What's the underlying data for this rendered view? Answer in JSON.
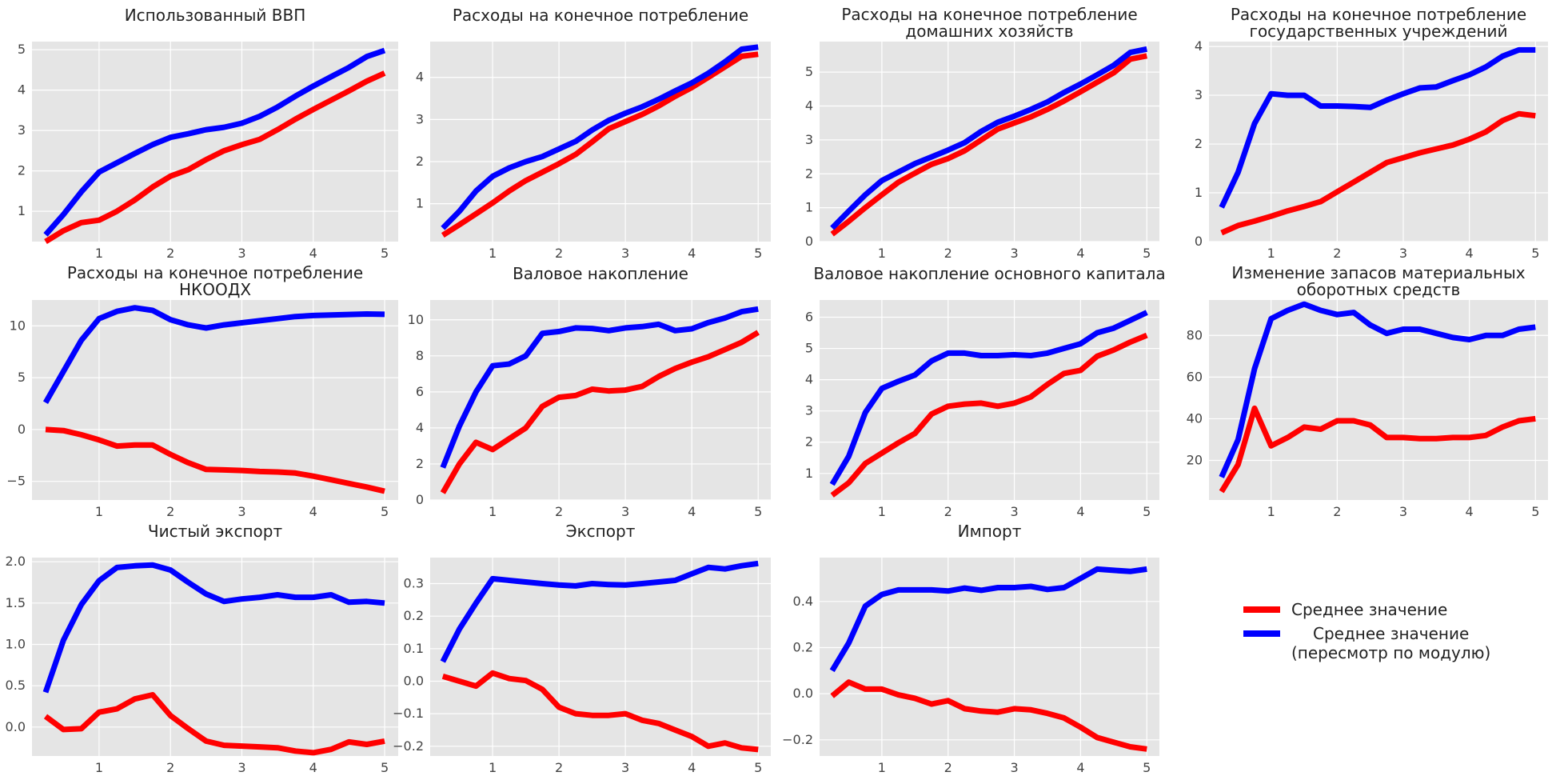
{
  "colors": {
    "red": "#ff0000",
    "blue": "#0000ff",
    "panel_bg": "#e5e5e5",
    "grid": "#ffffff"
  },
  "legend": {
    "red_label": "Среднее значение",
    "blue_label": "Среднее значение\n(пересмотр по модулю)"
  },
  "chart_data": [
    {
      "type": "line",
      "title": "Использованный ВВП",
      "x": [
        0.25,
        0.5,
        0.75,
        1,
        1.25,
        1.5,
        1.75,
        2,
        2.25,
        2.5,
        2.75,
        3,
        3.25,
        3.5,
        3.75,
        4,
        4.25,
        4.5,
        4.75,
        5
      ],
      "xticks": [
        "1",
        "2",
        "3",
        "4",
        "5"
      ],
      "yticks": [
        1,
        2,
        3,
        4,
        5
      ],
      "ylim": [
        0.25,
        5.2
      ],
      "series": [
        {
          "color": "red",
          "values": [
            0.25,
            0.52,
            0.72,
            0.78,
            1.0,
            1.28,
            1.6,
            1.87,
            2.03,
            2.28,
            2.5,
            2.65,
            2.78,
            3.02,
            3.28,
            3.52,
            3.75,
            3.98,
            4.22,
            4.42
          ]
        },
        {
          "color": "blue",
          "values": [
            0.42,
            0.92,
            1.48,
            1.97,
            2.2,
            2.43,
            2.65,
            2.83,
            2.92,
            3.02,
            3.08,
            3.18,
            3.35,
            3.58,
            3.85,
            4.1,
            4.33,
            4.56,
            4.83,
            4.98
          ]
        }
      ]
    },
    {
      "type": "line",
      "title": "Расходы на конечное потребление",
      "x": [
        0.25,
        0.5,
        0.75,
        1,
        1.25,
        1.5,
        1.75,
        2,
        2.25,
        2.5,
        2.75,
        3,
        3.25,
        3.5,
        3.75,
        4,
        4.25,
        4.5,
        4.75,
        5
      ],
      "xticks": [
        "1",
        "2",
        "3",
        "4",
        "5"
      ],
      "yticks": [
        1,
        2,
        3,
        4
      ],
      "ylim": [
        0.1,
        4.85
      ],
      "series": [
        {
          "color": "red",
          "values": [
            0.25,
            0.5,
            0.76,
            1.02,
            1.3,
            1.55,
            1.75,
            1.95,
            2.17,
            2.47,
            2.78,
            2.95,
            3.12,
            3.32,
            3.55,
            3.76,
            4.0,
            4.25,
            4.5,
            4.55
          ]
        },
        {
          "color": "blue",
          "values": [
            0.42,
            0.82,
            1.3,
            1.65,
            1.85,
            2.0,
            2.12,
            2.3,
            2.48,
            2.75,
            2.98,
            3.15,
            3.3,
            3.48,
            3.68,
            3.87,
            4.1,
            4.37,
            4.67,
            4.72
          ]
        }
      ]
    },
    {
      "type": "line",
      "title": "Расходы на конечное потребление\nдомашних хозяйств",
      "x": [
        0.25,
        0.5,
        0.75,
        1,
        1.25,
        1.5,
        1.75,
        2,
        2.25,
        2.5,
        2.75,
        3,
        3.25,
        3.5,
        3.75,
        4,
        4.25,
        4.5,
        4.75,
        5
      ],
      "xticks": [
        "1",
        "2",
        "3",
        "4",
        "5"
      ],
      "yticks": [
        0,
        1,
        2,
        3,
        4,
        5
      ],
      "ylim": [
        0,
        5.9
      ],
      "series": [
        {
          "color": "red",
          "values": [
            0.22,
            0.6,
            1.0,
            1.38,
            1.75,
            2.02,
            2.28,
            2.45,
            2.68,
            3.0,
            3.32,
            3.5,
            3.68,
            3.9,
            4.15,
            4.42,
            4.7,
            4.98,
            5.38,
            5.48
          ]
        },
        {
          "color": "blue",
          "values": [
            0.4,
            0.9,
            1.38,
            1.8,
            2.05,
            2.3,
            2.5,
            2.7,
            2.92,
            3.25,
            3.52,
            3.7,
            3.9,
            4.12,
            4.4,
            4.65,
            4.92,
            5.2,
            5.58,
            5.68
          ]
        }
      ]
    },
    {
      "type": "line",
      "title": "Расходы на конечное потребление\nгосударственных учреждений",
      "x": [
        0.25,
        0.5,
        0.75,
        1,
        1.25,
        1.5,
        1.75,
        2,
        2.25,
        2.5,
        2.75,
        3,
        3.25,
        3.5,
        3.75,
        4,
        4.25,
        4.5,
        4.75,
        5
      ],
      "xticks": [
        "1",
        "2",
        "3",
        "4",
        "5"
      ],
      "yticks": [
        0,
        1,
        2,
        3,
        4
      ],
      "ylim": [
        0,
        4.1
      ],
      "series": [
        {
          "color": "red",
          "values": [
            0.18,
            0.33,
            0.42,
            0.52,
            0.63,
            0.72,
            0.82,
            1.02,
            1.22,
            1.42,
            1.62,
            1.72,
            1.82,
            1.9,
            1.98,
            2.1,
            2.25,
            2.48,
            2.62,
            2.58
          ]
        },
        {
          "color": "blue",
          "values": [
            0.7,
            1.42,
            2.42,
            3.03,
            3.0,
            3.0,
            2.78,
            2.78,
            2.77,
            2.75,
            2.9,
            3.03,
            3.15,
            3.17,
            3.3,
            3.42,
            3.58,
            3.8,
            3.93,
            3.93
          ]
        }
      ]
    },
    {
      "type": "line",
      "title": "Расходы на конечное потребление\nНКООДХ",
      "x": [
        0.25,
        0.5,
        0.75,
        1,
        1.25,
        1.5,
        1.75,
        2,
        2.25,
        2.5,
        2.75,
        3,
        3.25,
        3.5,
        3.75,
        4,
        4.25,
        4.5,
        4.75,
        5
      ],
      "xticks": [
        "1",
        "2",
        "3",
        "4",
        "5"
      ],
      "yticks": [
        -5,
        0,
        5,
        10
      ],
      "ylim": [
        -6.8,
        12.5
      ],
      "series": [
        {
          "color": "red",
          "values": [
            0.0,
            -0.1,
            -0.5,
            -1.0,
            -1.6,
            -1.5,
            -1.5,
            -2.4,
            -3.2,
            -3.85,
            -3.9,
            -3.95,
            -4.05,
            -4.1,
            -4.2,
            -4.5,
            -4.85,
            -5.2,
            -5.55,
            -5.95
          ]
        },
        {
          "color": "blue",
          "values": [
            2.6,
            5.6,
            8.6,
            10.7,
            11.4,
            11.75,
            11.5,
            10.6,
            10.1,
            9.8,
            10.1,
            10.3,
            10.5,
            10.7,
            10.9,
            11.0,
            11.05,
            11.1,
            11.15,
            11.12
          ]
        }
      ]
    },
    {
      "type": "line",
      "title": "Валовое накопление",
      "x": [
        0.25,
        0.5,
        0.75,
        1,
        1.25,
        1.5,
        1.75,
        2,
        2.25,
        2.5,
        2.75,
        3,
        3.25,
        3.5,
        3.75,
        4,
        4.25,
        4.5,
        4.75,
        5
      ],
      "xticks": [
        "1",
        "2",
        "3",
        "4",
        "5"
      ],
      "yticks": [
        0,
        2,
        4,
        6,
        8,
        10
      ],
      "ylim": [
        0,
        11.1
      ],
      "series": [
        {
          "color": "red",
          "values": [
            0.4,
            2.0,
            3.2,
            2.8,
            3.4,
            4.0,
            5.2,
            5.7,
            5.8,
            6.15,
            6.05,
            6.1,
            6.3,
            6.85,
            7.3,
            7.65,
            7.95,
            8.35,
            8.75,
            9.3
          ]
        },
        {
          "color": "blue",
          "values": [
            1.8,
            4.1,
            6.0,
            7.45,
            7.55,
            8.0,
            9.25,
            9.35,
            9.55,
            9.52,
            9.4,
            9.55,
            9.62,
            9.75,
            9.4,
            9.5,
            9.85,
            10.1,
            10.45,
            10.6
          ]
        }
      ]
    },
    {
      "type": "line",
      "title": "Валовое накопление основного капитала",
      "x": [
        0.25,
        0.5,
        0.75,
        1,
        1.25,
        1.5,
        1.75,
        2,
        2.25,
        2.5,
        2.75,
        3,
        3.25,
        3.5,
        3.75,
        4,
        4.25,
        4.5,
        4.75,
        5
      ],
      "xticks": [
        "1",
        "2",
        "3",
        "4",
        "5"
      ],
      "yticks": [
        1,
        2,
        3,
        4,
        5,
        6
      ],
      "ylim": [
        0.15,
        6.55
      ],
      "series": [
        {
          "color": "red",
          "values": [
            0.3,
            0.7,
            1.32,
            1.65,
            1.98,
            2.28,
            2.9,
            3.15,
            3.22,
            3.25,
            3.15,
            3.25,
            3.45,
            3.85,
            4.2,
            4.3,
            4.75,
            4.95,
            5.2,
            5.42
          ]
        },
        {
          "color": "blue",
          "values": [
            0.65,
            1.55,
            2.95,
            3.72,
            3.95,
            4.15,
            4.6,
            4.85,
            4.85,
            4.77,
            4.77,
            4.8,
            4.77,
            4.85,
            5.0,
            5.15,
            5.5,
            5.65,
            5.9,
            6.15
          ]
        }
      ]
    },
    {
      "type": "line",
      "title": "Изменение запасов материальных\nоборотных средств",
      "x": [
        0.25,
        0.5,
        0.75,
        1,
        1.25,
        1.5,
        1.75,
        2,
        2.25,
        2.5,
        2.75,
        3,
        3.25,
        3.5,
        3.75,
        4,
        4.25,
        4.5,
        4.75,
        5
      ],
      "xticks": [
        "1",
        "2",
        "3",
        "4",
        "5"
      ],
      "yticks": [
        20,
        40,
        60,
        80
      ],
      "ylim": [
        1,
        97
      ],
      "series": [
        {
          "color": "red",
          "values": [
            5,
            18,
            45,
            27,
            31,
            36,
            35,
            39,
            39,
            37,
            31,
            31,
            30.5,
            30.5,
            31,
            31,
            32,
            36,
            39,
            40
          ]
        },
        {
          "color": "blue",
          "values": [
            12,
            30,
            64,
            88,
            92,
            95,
            92,
            90,
            91,
            85,
            81,
            83,
            83,
            81,
            79,
            78,
            80,
            80,
            83,
            84
          ]
        }
      ]
    },
    {
      "type": "line",
      "title": "Чистый экспорт",
      "x": [
        0.25,
        0.5,
        0.75,
        1,
        1.25,
        1.5,
        1.75,
        2,
        2.25,
        2.5,
        2.75,
        3,
        3.25,
        3.5,
        3.75,
        4,
        4.25,
        4.5,
        4.75,
        5
      ],
      "xticks": [
        "1",
        "2",
        "3",
        "4",
        "5"
      ],
      "yticks": [
        0.0,
        0.5,
        1.0,
        1.5,
        2.0
      ],
      "ylim": [
        -0.35,
        2.05
      ],
      "series": [
        {
          "color": "red",
          "values": [
            0.13,
            -0.03,
            -0.02,
            0.18,
            0.22,
            0.34,
            0.39,
            0.14,
            -0.02,
            -0.17,
            -0.22,
            -0.23,
            -0.24,
            -0.25,
            -0.29,
            -0.31,
            -0.27,
            -0.18,
            -0.21,
            -0.17
          ]
        },
        {
          "color": "blue",
          "values": [
            0.42,
            1.05,
            1.48,
            1.77,
            1.93,
            1.95,
            1.96,
            1.9,
            1.75,
            1.61,
            1.52,
            1.55,
            1.57,
            1.6,
            1.57,
            1.57,
            1.6,
            1.51,
            1.52,
            1.5
          ]
        }
      ]
    },
    {
      "type": "line",
      "title": "Экспорт",
      "x": [
        0.25,
        0.5,
        0.75,
        1,
        1.25,
        1.5,
        1.75,
        2,
        2.25,
        2.5,
        2.75,
        3,
        3.25,
        3.5,
        3.75,
        4,
        4.25,
        4.5,
        4.75,
        5
      ],
      "xticks": [
        "1",
        "2",
        "3",
        "4",
        "5"
      ],
      "yticks": [
        -0.2,
        -0.1,
        0.0,
        0.1,
        0.2,
        0.3
      ],
      "ylim": [
        -0.23,
        0.38
      ],
      "series": [
        {
          "color": "red",
          "values": [
            0.015,
            0.0,
            -0.015,
            0.025,
            0.008,
            0.002,
            -0.025,
            -0.08,
            -0.1,
            -0.105,
            -0.105,
            -0.1,
            -0.12,
            -0.13,
            -0.15,
            -0.17,
            -0.2,
            -0.19,
            -0.205,
            -0.21
          ]
        },
        {
          "color": "blue",
          "values": [
            0.06,
            0.16,
            0.24,
            0.315,
            0.31,
            0.305,
            0.3,
            0.296,
            0.293,
            0.3,
            0.297,
            0.296,
            0.3,
            0.305,
            0.31,
            0.33,
            0.35,
            0.345,
            0.355,
            0.362
          ]
        }
      ]
    },
    {
      "type": "line",
      "title": "Импорт",
      "x": [
        0.25,
        0.5,
        0.75,
        1,
        1.25,
        1.5,
        1.75,
        2,
        2.25,
        2.5,
        2.75,
        3,
        3.25,
        3.5,
        3.75,
        4,
        4.25,
        4.5,
        4.75,
        5
      ],
      "xticks": [
        "1",
        "2",
        "3",
        "4",
        "5"
      ],
      "yticks": [
        -0.2,
        0.0,
        0.2,
        0.4
      ],
      "ylim": [
        -0.27,
        0.59
      ],
      "series": [
        {
          "color": "red",
          "values": [
            -0.01,
            0.05,
            0.02,
            0.02,
            -0.005,
            -0.02,
            -0.045,
            -0.03,
            -0.065,
            -0.075,
            -0.08,
            -0.065,
            -0.07,
            -0.085,
            -0.105,
            -0.145,
            -0.19,
            -0.21,
            -0.23,
            -0.24
          ]
        },
        {
          "color": "blue",
          "values": [
            0.1,
            0.22,
            0.38,
            0.43,
            0.45,
            0.45,
            0.45,
            0.445,
            0.458,
            0.448,
            0.46,
            0.46,
            0.465,
            0.452,
            0.46,
            0.5,
            0.54,
            0.535,
            0.53,
            0.54
          ]
        }
      ]
    }
  ]
}
